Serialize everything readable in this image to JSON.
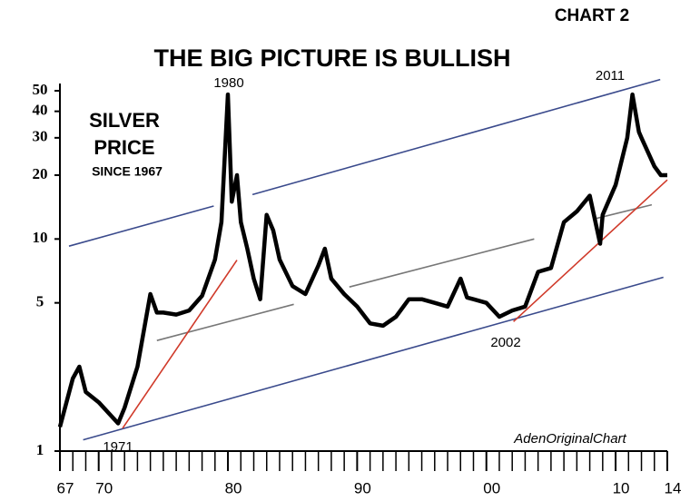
{
  "chart_data": {
    "type": "line",
    "chart_label": "CHART 2",
    "title": "THE BIG PICTURE IS BULLISH",
    "inset_title": [
      "SILVER",
      "PRICE"
    ],
    "inset_subtitle": "SINCE 1967",
    "credit": "AdenOriginalChart",
    "log_y": true,
    "xlim": [
      1967,
      2014
    ],
    "ylim": [
      1,
      50
    ],
    "yticks": [
      1,
      5,
      10,
      20,
      30,
      40,
      50
    ],
    "xticks": [
      {
        "value": 1967,
        "label": "67"
      },
      {
        "value": 1970,
        "label": "70"
      },
      {
        "value": 1980,
        "label": "80"
      },
      {
        "value": 1990,
        "label": "90"
      },
      {
        "value": 2000,
        "label": "00"
      },
      {
        "value": 2010,
        "label": "10"
      },
      {
        "value": 2014,
        "label": "14"
      }
    ],
    "xminorticks": [
      1968,
      1969,
      1971,
      1972,
      1973,
      1974,
      1975,
      1976,
      1977,
      1978,
      1979,
      1981,
      1982,
      1983,
      1984,
      1985,
      1986,
      1987,
      1988,
      1989,
      1991,
      1992,
      1993,
      1994,
      1995,
      1996,
      1997,
      1998,
      1999,
      2001,
      2002,
      2003,
      2004,
      2005,
      2006,
      2007,
      2008,
      2009,
      2011,
      2012,
      2013
    ],
    "series": [
      {
        "color": "#000000",
        "x": [
          1967,
          1968,
          1968.5,
          1969,
          1970,
          1971.5,
          1972,
          1973,
          1974,
          1974.5,
          1975,
          1976,
          1977,
          1978,
          1979,
          1979.5,
          1980,
          1980.3,
          1980.7,
          1981,
          1981.5,
          1982,
          1982.5,
          1983,
          1983.5,
          1984,
          1985,
          1986,
          1987,
          1987.5,
          1988,
          1989,
          1990,
          1991,
          1992,
          1993,
          1994,
          1995,
          1996,
          1997,
          1998,
          1998.5,
          1999,
          2000,
          2001,
          2002,
          2003,
          2004,
          2005,
          2006,
          2007,
          2008,
          2008.8,
          2009,
          2010,
          2010.9,
          2011.3,
          2011.8,
          2012,
          2013,
          2013.5,
          2014
        ],
        "values": [
          1.3,
          2.2,
          2.5,
          1.9,
          1.7,
          1.35,
          1.6,
          2.5,
          5.5,
          4.5,
          4.5,
          4.4,
          4.6,
          5.4,
          8,
          12,
          48,
          15,
          20,
          12,
          9,
          6.5,
          5.2,
          13,
          11,
          8,
          6,
          5.5,
          7.5,
          9,
          6.5,
          5.5,
          4.8,
          4,
          3.9,
          4.3,
          5.2,
          5.2,
          5,
          4.8,
          6.5,
          5.3,
          5.2,
          5,
          4.3,
          4.6,
          4.8,
          7,
          7.3,
          12,
          13.5,
          16,
          9.5,
          13,
          18,
          30,
          48,
          32,
          30,
          22,
          20,
          20
        ]
      }
    ],
    "trend_lines": [
      {
        "color": "#3a4a8c",
        "x": [
          1967.7,
          1978.9
        ],
        "values": [
          9.25,
          14.3
        ]
      },
      {
        "color": "#3a4a8c",
        "x": [
          1981.9,
          2013.45
        ],
        "values": [
          16.2,
          56.5
        ]
      },
      {
        "color": "#3a4a8c",
        "x": [
          1968.8,
          2013.7
        ],
        "values": [
          1.13,
          6.6
        ]
      },
      {
        "color": "#777777",
        "x": [
          1974.5,
          1985.1
        ],
        "values": [
          3.32,
          4.92
        ]
      },
      {
        "color": "#777777",
        "x": [
          1989.4,
          2003.7
        ],
        "values": [
          5.94,
          10
        ]
      },
      {
        "color": "#777777",
        "x": [
          2008.5,
          2012.8
        ],
        "values": [
          12.5,
          14.5
        ]
      },
      {
        "color": "#d03a2a",
        "x": [
          1971.85,
          1980.7
        ],
        "values": [
          1.28,
          7.95
        ]
      },
      {
        "color": "#d03a2a",
        "x": [
          2002.1,
          2014
        ],
        "values": [
          4.08,
          19
        ]
      }
    ],
    "annotations": [
      "1980",
      "2011",
      "2002",
      "1971"
    ]
  }
}
